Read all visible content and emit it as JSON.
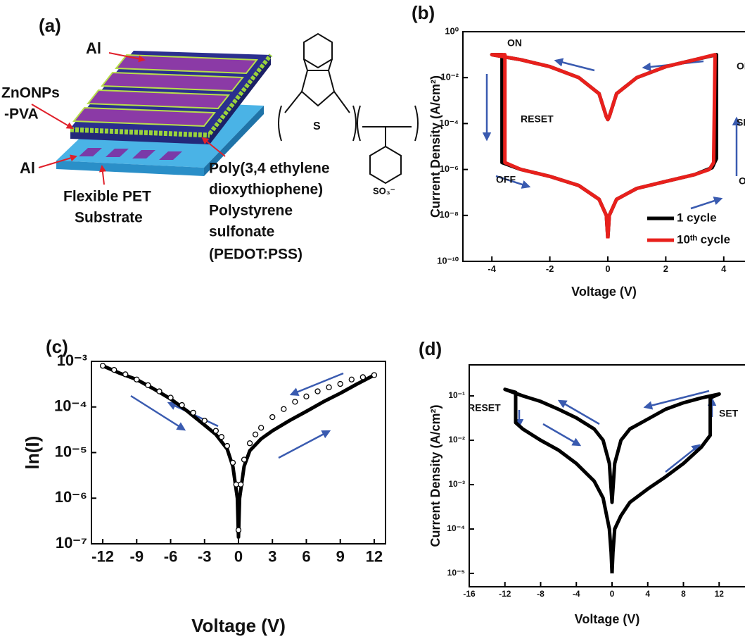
{
  "diagram": {
    "label": "(a)",
    "electrode_top": "Al",
    "active_layer": [
      "ZnONPs",
      "-PVA"
    ],
    "electrode_bottom": "Al",
    "substrate": [
      "Flexible PET",
      "Substrate"
    ],
    "polymer": [
      "Poly(3,4 ethylene",
      "dioxythiophene)",
      "Polystyrene",
      "sulfonate",
      "(PEDOT:PSS)"
    ],
    "chem": [
      "S",
      "SO₃⁻"
    ]
  },
  "chart_data": [
    {
      "type": "line",
      "label": "(b)",
      "xlabel": "Voltage (V)",
      "ylabel": "Current Density (A/cm²)",
      "yscale": "log",
      "xlim": [
        -5,
        5
      ],
      "ylim": [
        1e-10,
        1
      ],
      "xticks": [
        -4,
        -2,
        0,
        2,
        4
      ],
      "yticks": [
        {
          "value": 1e-10,
          "label": "10⁻¹⁰"
        },
        {
          "value": 1e-08,
          "label": "10⁻⁸"
        },
        {
          "value": 1e-06,
          "label": "10⁻⁶"
        },
        {
          "value": 0.0001,
          "label": "10⁻⁴"
        },
        {
          "value": 0.01,
          "label": "10⁻²"
        },
        {
          "value": 1,
          "label": "10⁰"
        }
      ],
      "annotations": [
        "ON",
        "ON",
        "RESET",
        "SET",
        "OFF",
        "OFF"
      ],
      "legend": "lower right",
      "series": [
        {
          "name": "1 cycle",
          "color": "#000000",
          "mode": "line",
          "x": [
            0,
            0.05,
            0.3,
            1,
            2,
            3,
            3.6,
            3.75,
            3.75,
            3,
            2,
            1,
            0.3,
            0.05,
            0,
            -0.05,
            -0.3,
            -1,
            -2,
            -3,
            -4,
            -3.65,
            -3.65,
            -3,
            -2,
            -1,
            -0.3,
            -0.05,
            0
          ],
          "values": [
            1e-09,
            1e-08,
            5e-08,
            1.5e-07,
            3e-07,
            6e-07,
            1.2e-06,
            3e-06,
            0.1,
            0.06,
            0.03,
            0.01,
            0.002,
            0.0002,
            0.00015,
            0.0002,
            0.002,
            0.01,
            0.03,
            0.06,
            0.1,
            0.1,
            2e-06,
            1e-06,
            5e-07,
            2e-07,
            5e-08,
            1e-08,
            1e-09
          ]
        },
        {
          "name": "10ᵗʰ cycle",
          "color": "#e8201c",
          "mode": "line",
          "x": [
            0,
            0.05,
            0.3,
            1,
            2,
            3,
            3.5,
            3.65,
            3.7,
            3,
            2,
            1,
            0.3,
            0.05,
            0,
            -0.05,
            -0.3,
            -1,
            -2,
            -3,
            -4,
            -3.55,
            -3.55,
            -3,
            -2,
            -1,
            -0.3,
            -0.05,
            0
          ],
          "values": [
            1e-09,
            1e-08,
            5e-08,
            1.5e-07,
            3e-07,
            6e-07,
            1e-06,
            2e-06,
            0.1,
            0.06,
            0.03,
            0.01,
            0.002,
            0.0002,
            0.00015,
            0.0002,
            0.002,
            0.01,
            0.03,
            0.06,
            0.1,
            0.1,
            2e-06,
            1e-06,
            5e-07,
            2e-07,
            5e-08,
            1e-08,
            1e-09
          ]
        }
      ]
    },
    {
      "type": "line",
      "label": "(c)",
      "xlabel": "Voltage (V)",
      "ylabel": "ln(I)",
      "yscale": "log",
      "xlim": [
        -13,
        13
      ],
      "ylim": [
        1e-07,
        0.001
      ],
      "xticks": [
        -12,
        -9,
        -6,
        -3,
        0,
        3,
        6,
        9,
        12
      ],
      "yticks": [
        {
          "value": 1e-07,
          "label": "10⁻⁷"
        },
        {
          "value": 1e-06,
          "label": "10⁻⁶"
        },
        {
          "value": 1e-05,
          "label": "10⁻⁵"
        },
        {
          "value": 0.0001,
          "label": "10⁻⁴"
        },
        {
          "value": 0.001,
          "label": "10⁻³"
        }
      ],
      "series": [
        {
          "color": "#000000",
          "mode": "line",
          "x": [
            -12,
            -10.5,
            -9,
            -7.5,
            -6,
            -4.5,
            -3,
            -2,
            -1,
            -0.5,
            -0.1,
            0,
            0.1,
            0.5,
            1,
            2,
            3,
            4.5,
            6,
            7.5,
            9,
            10.5,
            12
          ],
          "values": [
            0.0008,
            0.00055,
            0.0004,
            0.00025,
            0.00015,
            8e-05,
            4e-05,
            2.5e-05,
            1.2e-05,
            5e-06,
            1e-06,
            1.4e-07,
            1e-06,
            5e-06,
            1.1e-05,
            2e-05,
            3e-05,
            5e-05,
            8e-05,
            0.00013,
            0.0002,
            0.00032,
            0.0005
          ]
        },
        {
          "color": "#000000",
          "mode": "markers",
          "x": [
            -12,
            -11,
            -10,
            -9,
            -8,
            -7,
            -6,
            -5,
            -4,
            -3,
            -2,
            -1.5,
            -1,
            -0.5,
            -0.2,
            0,
            0.2,
            0.5,
            1,
            1.5,
            2,
            3,
            4,
            5,
            6,
            7,
            8,
            9,
            10,
            11,
            12
          ],
          "values": [
            0.0008,
            0.00065,
            0.00052,
            0.0004,
            0.0003,
            0.00022,
            0.00016,
            0.00011,
            7.5e-05,
            5e-05,
            3e-05,
            2.2e-05,
            1.4e-05,
            6e-06,
            2e-06,
            2e-07,
            2e-06,
            7e-06,
            1.6e-05,
            2.5e-05,
            3.5e-05,
            6e-05,
            9e-05,
            0.00013,
            0.00017,
            0.00022,
            0.00027,
            0.00032,
            0.0004,
            0.00045,
            0.0005
          ]
        }
      ]
    },
    {
      "type": "line",
      "label": "(d)",
      "xlabel": "Voltage (V)",
      "ylabel": "Current Density (A/cm²)",
      "yscale": "log",
      "xlim": [
        -16,
        16
      ],
      "ylim": [
        5e-06,
        0.5
      ],
      "xticks": [
        -16,
        -12,
        -8,
        -4,
        0,
        4,
        8,
        12
      ],
      "yticks": [
        {
          "value": 1e-05,
          "label": "10⁻⁵"
        },
        {
          "value": 0.0001,
          "label": "10⁻⁴"
        },
        {
          "value": 0.001,
          "label": "10⁻³"
        },
        {
          "value": 0.01,
          "label": "10⁻²"
        },
        {
          "value": 0.1,
          "label": "10⁻¹"
        }
      ],
      "annotations": [
        "RESET",
        "SET"
      ],
      "series": [
        {
          "color": "#000000",
          "mode": "line",
          "x": [
            0,
            0.1,
            0.3,
            1,
            2,
            4,
            6,
            8,
            10,
            11,
            11,
            12,
            10,
            8,
            6,
            4,
            2,
            1,
            0.3,
            0,
            -0.3,
            -1,
            -2,
            -4,
            -6,
            -8,
            -10,
            -12,
            -10.8,
            -10.8,
            -10,
            -8,
            -6,
            -4,
            -2,
            -1,
            -0.3,
            -0.1,
            0
          ],
          "values": [
            1e-05,
            3e-05,
            0.0001,
            0.0002,
            0.0004,
            0.0008,
            0.0015,
            0.003,
            0.007,
            0.013,
            0.09,
            0.11,
            0.09,
            0.07,
            0.05,
            0.03,
            0.018,
            0.01,
            0.003,
            0.0004,
            0.003,
            0.01,
            0.018,
            0.032,
            0.05,
            0.075,
            0.1,
            0.14,
            0.12,
            0.025,
            0.018,
            0.01,
            0.006,
            0.003,
            0.0012,
            0.0005,
            0.0001,
            3e-05,
            1e-05
          ]
        }
      ]
    }
  ]
}
